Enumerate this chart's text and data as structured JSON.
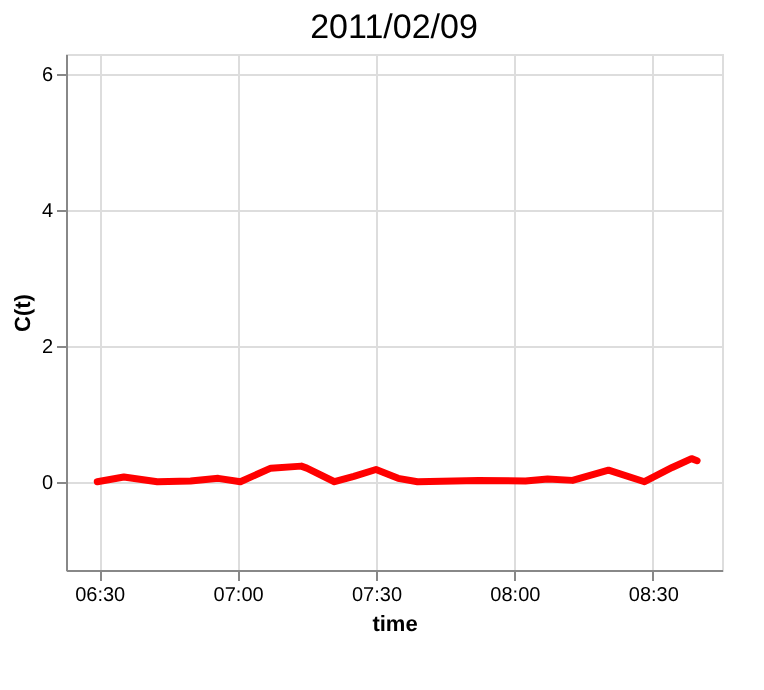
{
  "chart_data": {
    "type": "line",
    "title": "2011/02/09",
    "xlabel": "time",
    "ylabel": "C(t)",
    "x": [
      6.493,
      6.589,
      6.71,
      6.83,
      6.93,
      7.01,
      7.12,
      7.23,
      7.25,
      7.35,
      7.42,
      7.5,
      7.58,
      7.65,
      7.87,
      8.04,
      8.12,
      8.21,
      8.34,
      8.47,
      8.57,
      8.64,
      8.66
    ],
    "series": [
      {
        "color": "#ff0000",
        "values": [
          0,
          0.07,
          0,
          0.01,
          0.05,
          0,
          0.2,
          0.23,
          0.2,
          0,
          0.08,
          0.18,
          0.05,
          0,
          0.02,
          0.01,
          0.04,
          0.02,
          0.17,
          0,
          0.21,
          0.34,
          0.31
        ]
      }
    ],
    "xlim": [
      6.38,
      8.75
    ],
    "ylim": [
      -1.3,
      6.3
    ],
    "xticks": [
      {
        "value": 6.5,
        "label": "06:30"
      },
      {
        "value": 7,
        "label": "07:00"
      },
      {
        "value": 7.5,
        "label": "07:30"
      },
      {
        "value": 8,
        "label": "08:00"
      },
      {
        "value": 8.5,
        "label": "08:30"
      }
    ],
    "yticks": [
      0,
      2,
      4,
      6
    ],
    "grid": true,
    "line_style": "solid",
    "marker": "none"
  }
}
